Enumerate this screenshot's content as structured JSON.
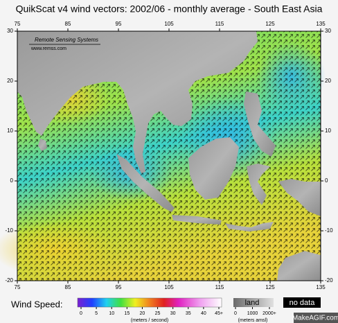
{
  "title": "QuikScat v4 wind vectors: 2002/06 - monthly average - South East Asia",
  "logo": {
    "name": "Remote Sensing Systems",
    "url": "www.remss.com"
  },
  "map": {
    "lon_ticks": [
      75,
      85,
      95,
      105,
      115,
      125,
      135
    ],
    "lat_ticks": [
      30,
      20,
      10,
      0,
      -10,
      -20
    ]
  },
  "legend": {
    "label": "Wind Speed:",
    "speed_ticks": [
      0,
      5,
      10,
      15,
      20,
      25,
      30,
      35,
      40,
      {
        "value": 45,
        "label": "45+"
      }
    ],
    "speed_unit": "(meters / second)",
    "land_label": "land",
    "elevation_ticks": [
      0,
      1000,
      {
        "value": 2000,
        "label": "2000+"
      }
    ],
    "elevation_unit": "(meters amsl)",
    "no_data_label": "no data"
  },
  "watermark": "MakeAGIF.com"
}
